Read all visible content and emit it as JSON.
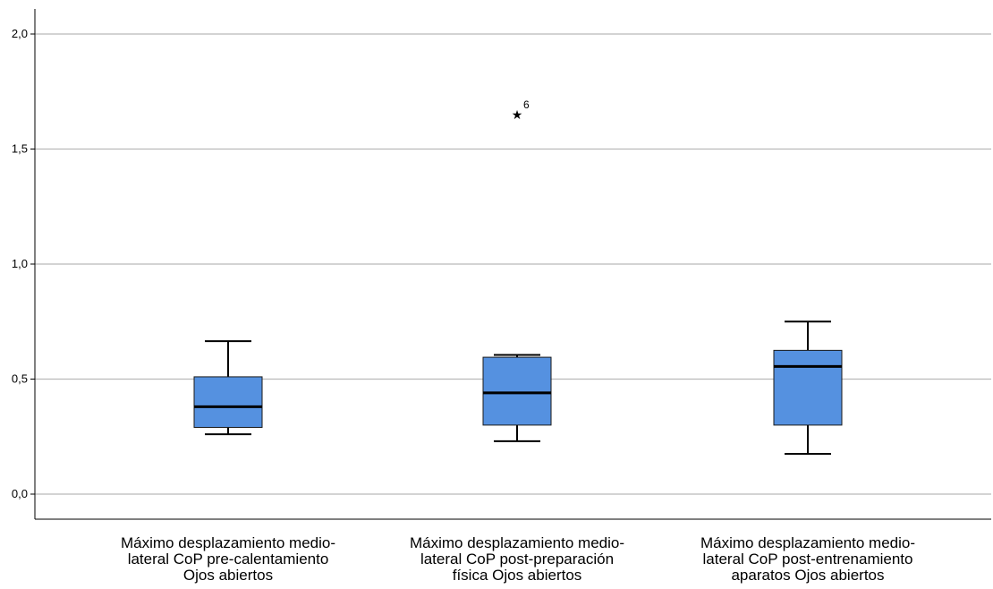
{
  "chart_data": {
    "type": "box",
    "title": "",
    "xlabel": "",
    "ylabel": "",
    "ylim": [
      0.0,
      2.1
    ],
    "yticks": [
      0.0,
      0.5,
      1.0,
      1.5,
      2.0
    ],
    "ytick_labels": [
      "0,0",
      "0,5",
      "1,0",
      "1,5",
      "2,0"
    ],
    "grid": "horizontal",
    "box_color": "#5591E0",
    "categories": [
      [
        "Máximo desplazamiento medio-",
        "lateral CoP pre-calentamiento",
        "Ojos abiertos"
      ],
      [
        "Máximo desplazamiento medio-",
        "lateral CoP post-preparación",
        "física Ojos abiertos"
      ],
      [
        "Máximo desplazamiento medio-",
        "lateral CoP post-entrenamiento",
        "aparatos Ojos abiertos"
      ]
    ],
    "boxes": [
      {
        "whisker_low": 0.26,
        "q1": 0.29,
        "median": 0.38,
        "q3": 0.51,
        "whisker_high": 0.665,
        "outliers": []
      },
      {
        "whisker_low": 0.23,
        "q1": 0.3,
        "median": 0.44,
        "q3": 0.595,
        "whisker_high": 0.605,
        "outliers": [
          {
            "value": 1.65,
            "label": "6",
            "marker": "★"
          }
        ]
      },
      {
        "whisker_low": 0.175,
        "q1": 0.3,
        "median": 0.555,
        "q3": 0.625,
        "whisker_high": 0.75,
        "outliers": []
      }
    ]
  }
}
